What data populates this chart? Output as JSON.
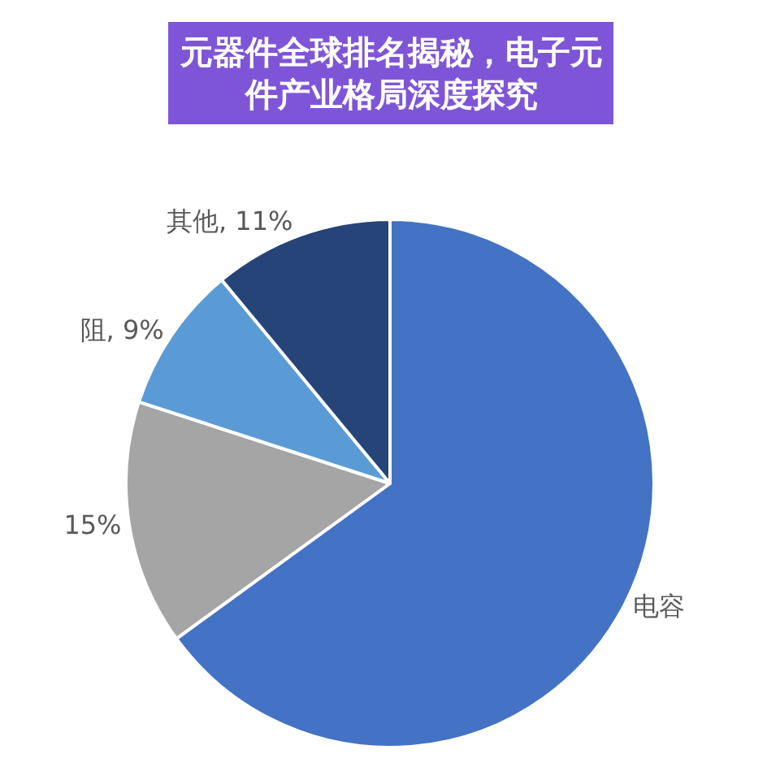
{
  "chart_data": {
    "type": "pie",
    "title": "元器件全球排名揭秘，电子元件产业格局深度探究",
    "categories": [
      "电容",
      null,
      "阻",
      "其他"
    ],
    "values": [
      65,
      15,
      9,
      11
    ],
    "value_labels": [
      null,
      "15%",
      "9%",
      "11%"
    ],
    "colors": [
      "#4472c4",
      "#a5a5a5",
      "#5b9bd5",
      "#264478"
    ]
  }
}
